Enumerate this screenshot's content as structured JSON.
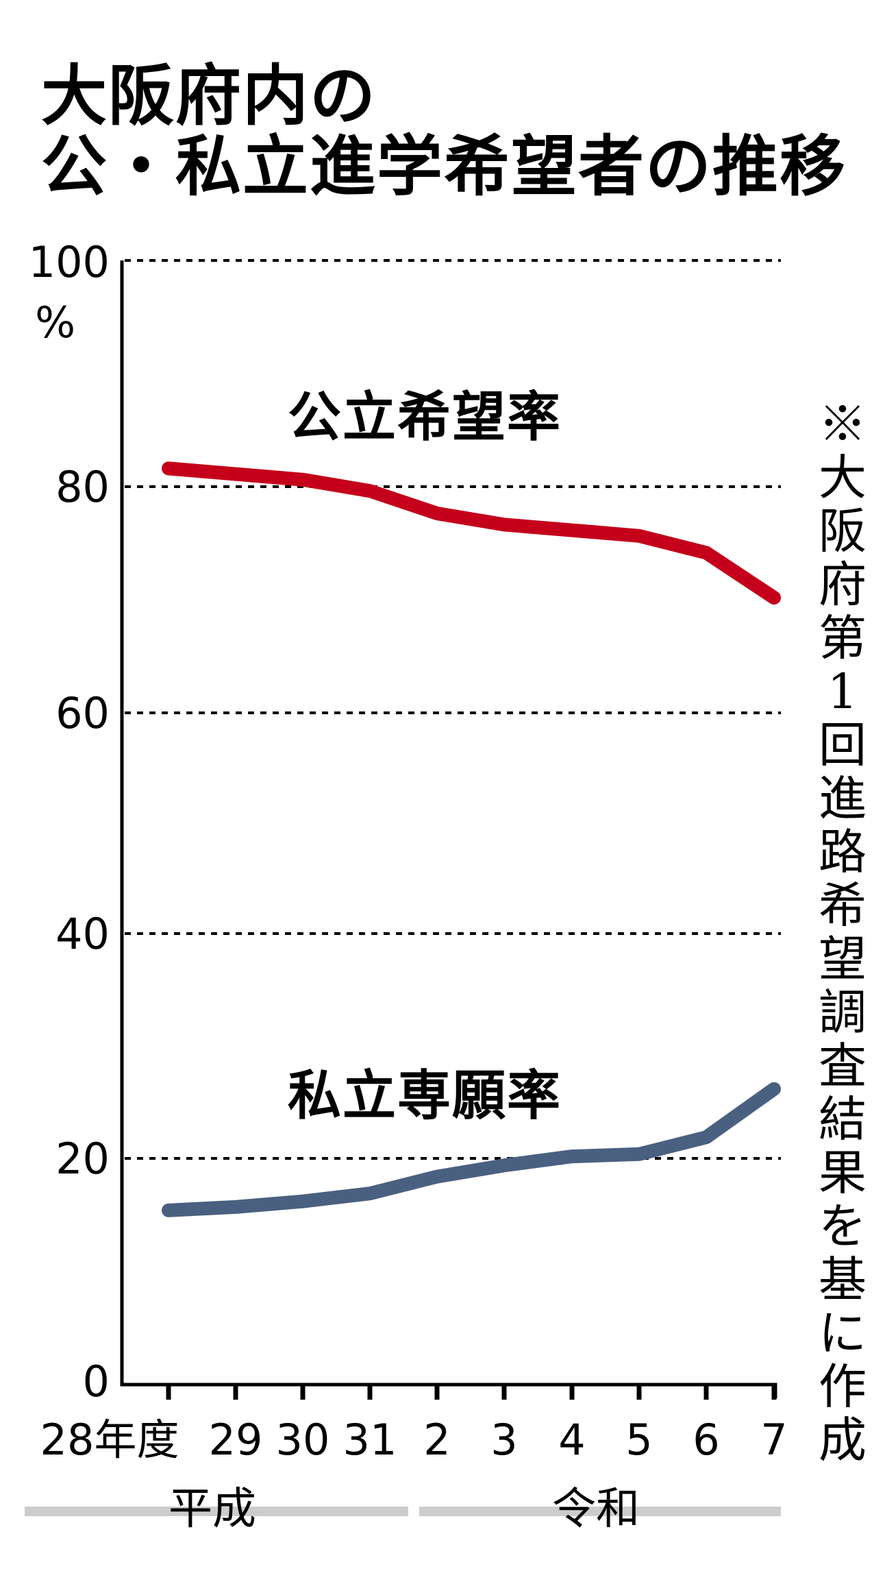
{
  "header": {
    "title_line1": "大阪府内の",
    "title_line2": "公・私立進学希望者の推移"
  },
  "axes": {
    "y_unit": "%",
    "y_ticks": [
      "100",
      "80",
      "60",
      "40",
      "20",
      "0"
    ],
    "x_ticks": [
      "28年度",
      "29",
      "30",
      "31",
      "2",
      "3",
      "4",
      "5",
      "6",
      "7"
    ],
    "eras": [
      {
        "label": "平成"
      },
      {
        "label": "令和"
      }
    ]
  },
  "series_labels": {
    "public": "公立希望率",
    "private": "私立専願率"
  },
  "note": "※大阪府第1回進路希望調査結果を基に作成",
  "colors": {
    "public": "#c4001a",
    "private": "#4a6080",
    "era_bar": "#cccccc"
  },
  "chart_data": {
    "type": "line",
    "title": "大阪府内の公・私立進学希望者の推移",
    "xlabel": "",
    "ylabel": "%",
    "ylim": [
      0,
      100
    ],
    "y_ticks": [
      0,
      20,
      40,
      60,
      80,
      100
    ],
    "grid": "dotted horizontal at 20, 40, 60, 80, 100",
    "categories": [
      "平成28年度",
      "平成29",
      "平成30",
      "平成31",
      "令和2",
      "令和3",
      "令和4",
      "令和5",
      "令和6",
      "令和7"
    ],
    "series": [
      {
        "name": "公立希望率",
        "color": "#c4001a",
        "values": [
          81.5,
          81.0,
          80.5,
          79.5,
          77.5,
          76.5,
          76.0,
          75.5,
          74.0,
          70.0
        ]
      },
      {
        "name": "私立専願率",
        "color": "#4a6080",
        "values": [
          15.5,
          15.8,
          16.3,
          17.0,
          18.5,
          19.5,
          20.3,
          20.5,
          22.0,
          26.3
        ]
      }
    ],
    "legend": "direct labels above lines",
    "annotations": [
      "平成",
      "令和",
      "※大阪府第1回進路希望調査結果を基に作成"
    ]
  }
}
